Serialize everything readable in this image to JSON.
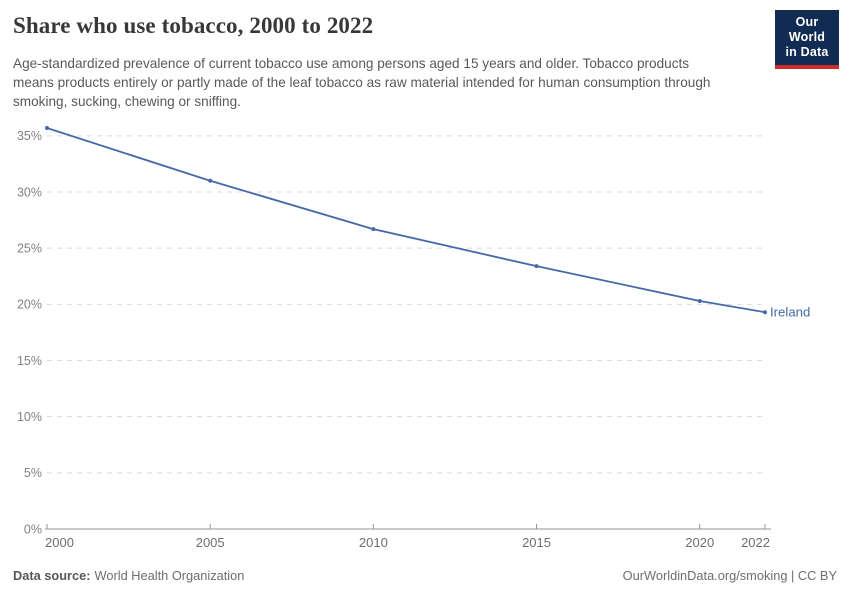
{
  "header": {
    "title": "Share who use tobacco, 2000 to 2022",
    "subtitle": "Age-standardized prevalence of current tobacco use among persons aged 15 years and older. Tobacco products means products entirely or partly made of the leaf tobacco as raw material intended for human consumption through smoking, sucking, chewing or sniffing."
  },
  "logo": {
    "line1": "Our World",
    "line2": "in Data",
    "bg_color": "#122b52",
    "bar_color": "#cf2d2c"
  },
  "chart_data": {
    "type": "line",
    "title": "Share who use tobacco, 2000 to 2022",
    "x": [
      2000,
      2005,
      2010,
      2015,
      2020,
      2022
    ],
    "series": [
      {
        "name": "Ireland",
        "color": "#4569a8",
        "values": [
          35.7,
          31.0,
          26.7,
          23.4,
          20.3,
          19.3
        ]
      }
    ],
    "end_label": "Ireland",
    "unit": "%",
    "xlim": [
      2000,
      2022
    ],
    "ylim": [
      0,
      36.5
    ],
    "yticks": [
      0,
      5,
      10,
      15,
      20,
      25,
      30,
      35
    ],
    "ytick_labels": [
      "0%",
      "5%",
      "10%",
      "15%",
      "20%",
      "25%",
      "30%",
      "35%"
    ],
    "xticks": [
      2000,
      2005,
      2010,
      2015,
      2020,
      2022
    ],
    "xtick_labels": [
      "2000",
      "2005",
      "2010",
      "2015",
      "2020",
      "2022"
    ],
    "grid": "horizontal-dashed",
    "legend": "end-of-line-label"
  },
  "footer": {
    "source_label": "Data source:",
    "source_value": "World Health Organization",
    "link": "OurWorldinData.org/smoking",
    "license": " | CC BY"
  },
  "colors": {
    "line": "#4569a8",
    "grid": "#dadada",
    "axis": "#969696",
    "y_tick_label": "#828282",
    "x_tick_label": "#6e6e6e",
    "title": "#383838",
    "subtitle": "#595959"
  }
}
